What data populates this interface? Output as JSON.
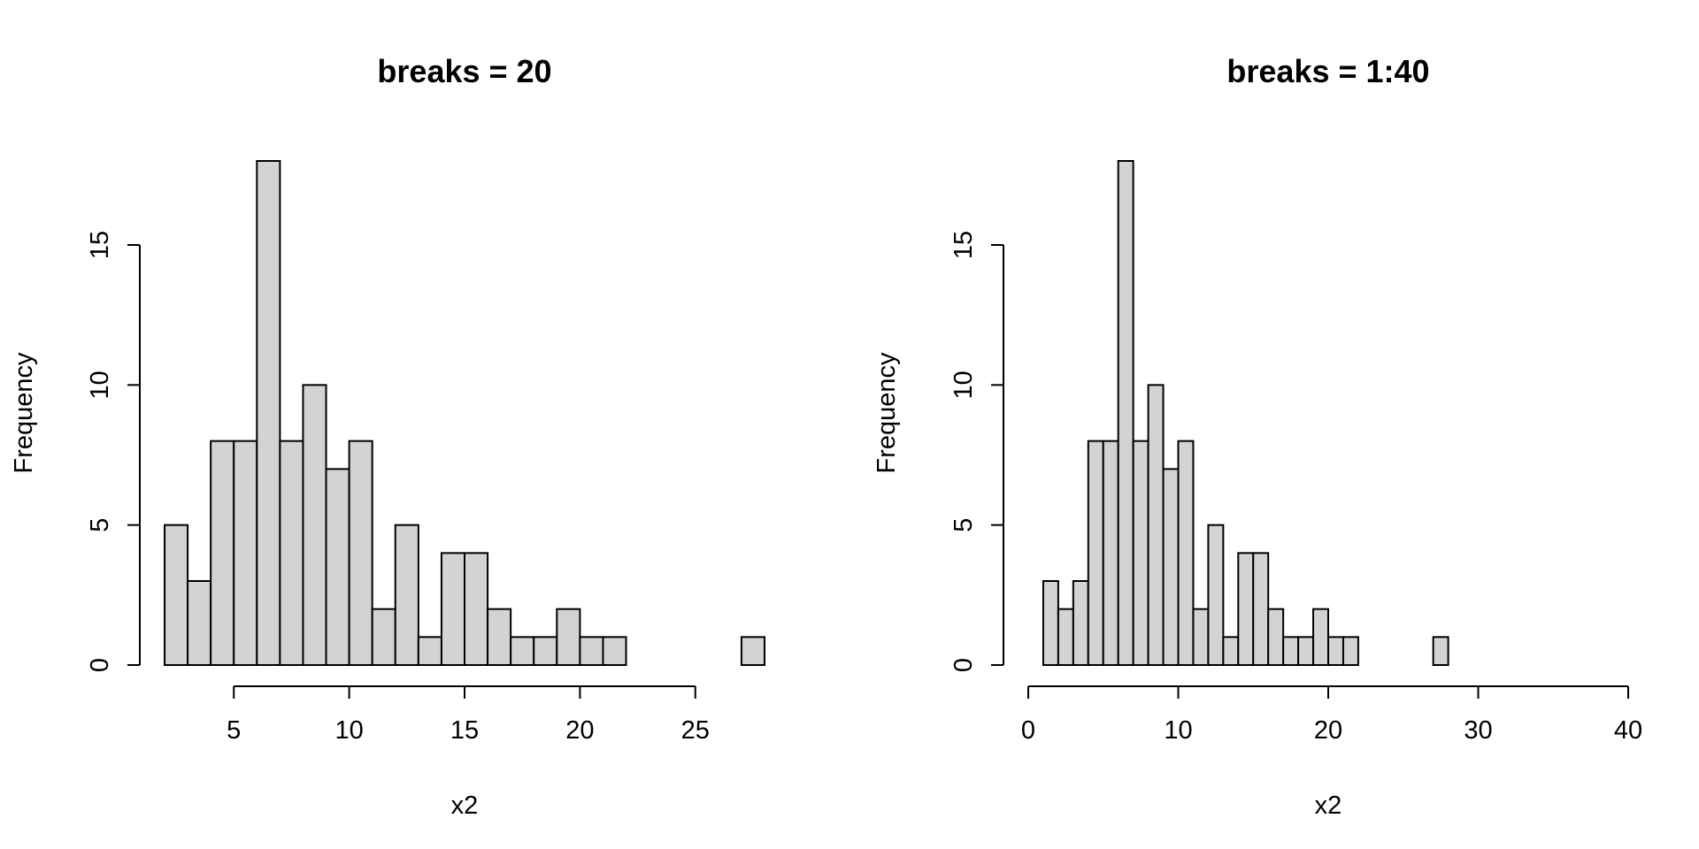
{
  "chart_data": [
    {
      "type": "bar",
      "title": "breaks = 20",
      "xlabel": "x2",
      "ylabel": "Frequency",
      "bin_edges": [
        2,
        3,
        4,
        5,
        6,
        7,
        8,
        9,
        10,
        11,
        12,
        13,
        14,
        15,
        16,
        17,
        18,
        19,
        20,
        21,
        22,
        23,
        24,
        25,
        26,
        27,
        28
      ],
      "values": [
        5,
        3,
        8,
        8,
        18,
        8,
        10,
        7,
        8,
        2,
        5,
        1,
        4,
        4,
        2,
        1,
        1,
        2,
        1,
        1,
        0,
        0,
        0,
        0,
        0,
        1
      ],
      "xlim": [
        2,
        28
      ],
      "ylim": [
        0,
        18
      ],
      "xticks": [
        5,
        10,
        15,
        20,
        25
      ],
      "yticks": [
        0,
        5,
        10,
        15
      ],
      "grid": false
    },
    {
      "type": "bar",
      "title": "breaks = 1:40",
      "xlabel": "x2",
      "ylabel": "Frequency",
      "bin_edges": [
        1,
        2,
        3,
        4,
        5,
        6,
        7,
        8,
        9,
        10,
        11,
        12,
        13,
        14,
        15,
        16,
        17,
        18,
        19,
        20,
        21,
        22,
        23,
        24,
        25,
        26,
        27,
        28,
        29,
        30,
        31,
        32,
        33,
        34,
        35,
        36,
        37,
        38,
        39,
        40
      ],
      "values": [
        3,
        2,
        3,
        8,
        8,
        18,
        8,
        10,
        7,
        8,
        2,
        5,
        1,
        4,
        4,
        2,
        1,
        1,
        2,
        1,
        1,
        0,
        0,
        0,
        0,
        0,
        1,
        0,
        0,
        0,
        0,
        0,
        0,
        0,
        0,
        0,
        0,
        0,
        0
      ],
      "xlim": [
        0,
        40
      ],
      "ylim": [
        0,
        18
      ],
      "xticks": [
        0,
        10,
        20,
        30,
        40
      ],
      "yticks": [
        0,
        5,
        10,
        15
      ],
      "grid": false
    }
  ]
}
